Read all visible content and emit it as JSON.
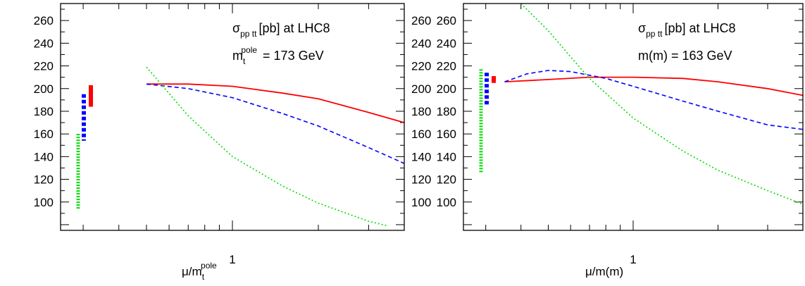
{
  "chart_data": [
    {
      "type": "line",
      "panel": "left",
      "annotation": {
        "line1_sigma": "σ",
        "line1_sub": "pp   tt",
        "line1_rest": "[pb] at LHC8",
        "line2_m": "m",
        "line2_sub": "t",
        "line2_sup": "pole",
        "line2_rest": "= 173 GeV"
      },
      "xlabel": {
        "main": "μ/m",
        "sub": "t",
        "sup": "pole"
      },
      "x_scale": "log",
      "xlim": [
        0.25,
        4.0
      ],
      "ylim": [
        75,
        275
      ],
      "y_ticks": [
        100,
        120,
        140,
        160,
        180,
        200,
        220,
        240,
        260
      ],
      "x_tick_labels": [
        {
          "value": 1,
          "label": "1"
        }
      ],
      "grid": false,
      "series": [
        {
          "style": "solid",
          "color": "#ff0000",
          "x": [
            0.5,
            0.7,
            1.0,
            1.5,
            2.0,
            3.0,
            4.0
          ],
          "y": [
            204,
            204,
            202,
            196,
            191,
            179,
            170
          ]
        },
        {
          "style": "dashed",
          "color": "#0000ff",
          "x": [
            0.5,
            0.7,
            1.0,
            1.5,
            2.0,
            3.0,
            4.0
          ],
          "y": [
            204,
            200,
            192,
            178,
            167,
            148,
            134
          ]
        },
        {
          "style": "dotted",
          "color": "#00dd00",
          "x": [
            0.5,
            0.7,
            1.0,
            1.5,
            2.0,
            3.0,
            3.5
          ],
          "y": [
            219,
            176,
            140,
            114,
            99,
            83,
            79
          ]
        }
      ],
      "error_bars": [
        {
          "color": "#00dd00",
          "low": 94,
          "high": 160
        },
        {
          "color": "#0000ff",
          "low": 154,
          "high": 195
        },
        {
          "color": "#ff0000",
          "low": 184,
          "high": 203
        }
      ]
    },
    {
      "type": "line",
      "panel": "right",
      "annotation": {
        "line1_sigma": "σ",
        "line1_sub": "pp   tt",
        "line1_rest": "[pb] at LHC8",
        "line2_m": "m(m) = 163 GeV"
      },
      "xlabel": {
        "main": "μ/m(m)"
      },
      "x_scale": "log",
      "xlim": [
        0.25,
        4.0
      ],
      "ylim": [
        75,
        275
      ],
      "y_ticks": [
        100,
        120,
        140,
        160,
        180,
        200,
        220,
        240,
        260
      ],
      "x_tick_labels": [
        {
          "value": 1,
          "label": "1"
        }
      ],
      "grid": false,
      "series": [
        {
          "style": "solid",
          "color": "#ff0000",
          "x": [
            0.35,
            0.5,
            0.7,
            1.0,
            1.5,
            2.0,
            3.0,
            4.0
          ],
          "y": [
            206,
            208,
            210,
            210,
            209,
            206,
            200,
            194
          ]
        },
        {
          "style": "dashed",
          "color": "#0000ff",
          "x": [
            0.35,
            0.42,
            0.5,
            0.6,
            0.8,
            1.0,
            1.5,
            2.0,
            3.0,
            4.0
          ],
          "y": [
            206,
            213,
            216,
            215,
            209,
            202,
            189,
            180,
            168,
            164
          ]
        },
        {
          "style": "dotted",
          "color": "#00dd00",
          "x": [
            0.4,
            0.5,
            0.6,
            0.7,
            1.0,
            1.5,
            2.0,
            3.0,
            4.0
          ],
          "y": [
            275,
            251,
            228,
            209,
            174,
            145,
            128,
            110,
            98
          ]
        }
      ],
      "error_bars": [
        {
          "color": "#00dd00",
          "low": 126,
          "high": 217
        },
        {
          "color": "#0000ff",
          "low": 186,
          "high": 214
        },
        {
          "color": "#ff0000",
          "low": 205,
          "high": 211
        }
      ]
    }
  ]
}
